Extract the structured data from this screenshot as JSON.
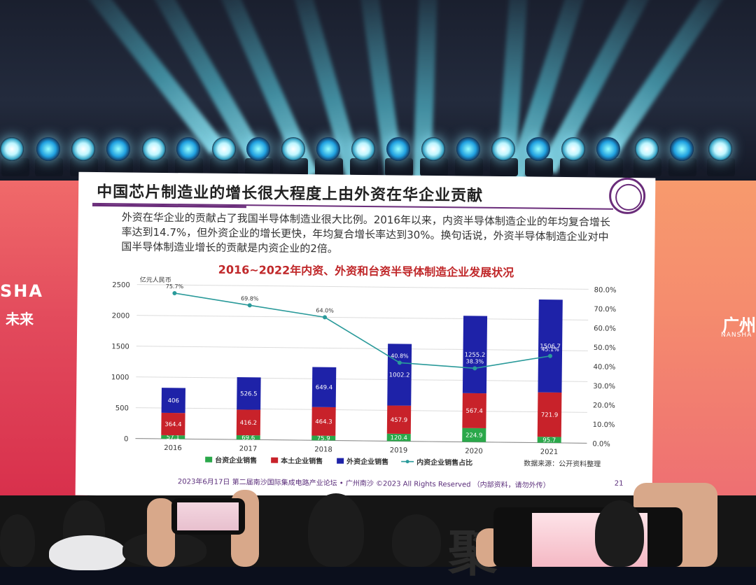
{
  "stage": {
    "left_banner_line1": "SHA",
    "left_banner_line2": "未来",
    "right_banner_line1": "广州",
    "right_banner_line2": "NANSHA",
    "backdrop_char": "聚"
  },
  "slide": {
    "title": "中国芯片制造业的增长很大程度上由外资在华企业贡献",
    "paragraph": "外资在华企业的贡献占了我国半导体制造业很大比例。2016年以来，内资半导体制造企业的年均复合增长率达到14.7%，但外资企业的增长更快，年均复合增长率达到30%。换句话说，外资半导体制造企业对中国半导体制造业增长的贡献是内资企业的2倍。",
    "chart_title": "2016~2022年内资、外资和台资半导体制造企业发展状况",
    "footer": "2023年6月17日 第二届南沙国际集成电路产业论坛 • 广州南沙 ©2023 All Rights Reserved （内部资料，请勿外传）",
    "page_number": "21",
    "source_note": "数据来源：公开资料整理"
  },
  "chart_data": {
    "type": "bar",
    "stacked": true,
    "categories": [
      "2016",
      "2017",
      "2018",
      "2019",
      "2020",
      "2021"
    ],
    "unit_label": "亿元人民币",
    "series": [
      {
        "name": "台资企业销售",
        "color": "#2aa84a",
        "values": [
          57.1,
          69.6,
          75.9,
          120.4,
          224.9,
          95.7
        ]
      },
      {
        "name": "本土企业销售",
        "color": "#c8222a",
        "values": [
          364.4,
          416.2,
          464.3,
          457.9,
          567.4,
          721.9
        ]
      },
      {
        "name": "外资企业销售",
        "color": "#1e22a8",
        "values": [
          406,
          526.5,
          649.4,
          1002.2,
          1255.2,
          1506.7
        ]
      }
    ],
    "line_series": {
      "name": "内资企业销售占比",
      "color": "#2a9a9a",
      "values": [
        75.7,
        69.8,
        64.0,
        40.8,
        38.3,
        45.1
      ],
      "labels": [
        "75.7%",
        "69.8%",
        "64.0%",
        "40.8%",
        "38.3%",
        "45.1%"
      ]
    },
    "y_left": {
      "min": 0,
      "max": 2500,
      "ticks": [
        "0",
        "500",
        "1000",
        "1500",
        "2000",
        "2500"
      ]
    },
    "y_right": {
      "min": 0,
      "max": 80,
      "ticks": [
        "0.0%",
        "10.0%",
        "20.0%",
        "30.0%",
        "40.0%",
        "50.0%",
        "60.0%",
        "70.0%",
        "80.0%"
      ]
    },
    "grid": true,
    "legend_position": "bottom"
  }
}
